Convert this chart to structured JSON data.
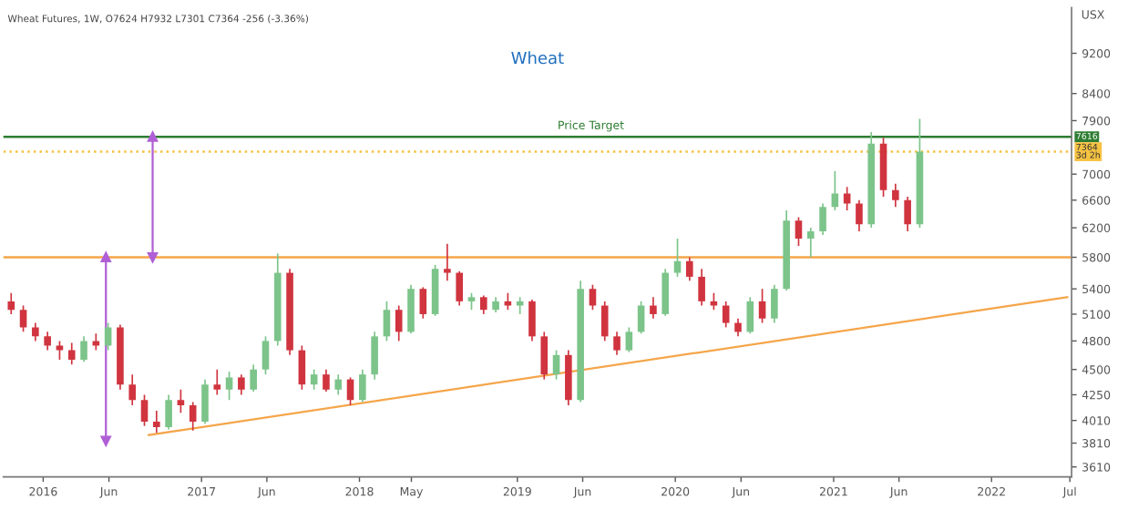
{
  "chart_data": {
    "type": "candlestick",
    "title": "Wheat",
    "subtitle": "Wheat Futures, 1W, O7624 H7932 L7301 C7364 -256 (-3.36%)",
    "ylabel": "USX",
    "x": [
      "2015-10-19",
      "2015-11-16",
      "2015-12-14",
      "2016-01-11",
      "2016-02-08",
      "2016-03-07",
      "2016-04-04",
      "2016-05-02",
      "2016-05-30",
      "2016-06-27",
      "2016-07-25",
      "2016-08-22",
      "2016-09-19",
      "2016-10-17",
      "2016-11-14",
      "2016-12-12",
      "2017-01-09",
      "2017-02-06",
      "2017-03-06",
      "2017-04-03",
      "2017-05-01",
      "2017-05-29",
      "2017-06-26",
      "2017-07-24",
      "2017-08-21",
      "2017-09-18",
      "2017-10-16",
      "2017-11-13",
      "2017-12-11",
      "2018-01-08",
      "2018-02-05",
      "2018-03-05",
      "2018-04-02",
      "2018-04-30",
      "2018-05-28",
      "2018-06-25",
      "2018-07-23",
      "2018-08-20",
      "2018-09-17",
      "2018-10-15",
      "2018-11-12",
      "2018-12-10",
      "2019-01-07",
      "2019-02-04",
      "2019-03-04",
      "2019-04-01",
      "2019-04-29",
      "2019-05-27",
      "2019-06-24",
      "2019-07-22",
      "2019-08-19",
      "2019-09-16",
      "2019-10-14",
      "2019-11-11",
      "2019-12-09",
      "2020-01-06",
      "2020-02-03",
      "2020-03-02",
      "2020-03-30",
      "2020-04-27",
      "2020-05-25",
      "2020-06-22",
      "2020-07-20",
      "2020-08-17",
      "2020-09-14",
      "2020-10-12",
      "2020-11-09",
      "2020-12-07",
      "2021-01-04",
      "2021-02-01",
      "2021-03-01",
      "2021-03-29",
      "2021-04-26",
      "2021-05-24",
      "2021-06-21",
      "2021-07-19"
    ],
    "ohlc": [
      [
        5250,
        5350,
        5100,
        5150
      ],
      [
        5150,
        5200,
        4900,
        4950
      ],
      [
        4950,
        5000,
        4800,
        4850
      ],
      [
        4850,
        4900,
        4700,
        4750
      ],
      [
        4750,
        4800,
        4600,
        4700
      ],
      [
        4700,
        4780,
        4550,
        4600
      ],
      [
        4600,
        4850,
        4580,
        4800
      ],
      [
        4800,
        4880,
        4700,
        4750
      ],
      [
        4750,
        5000,
        4700,
        4950
      ],
      [
        4950,
        4980,
        4300,
        4350
      ],
      [
        4350,
        4450,
        4150,
        4200
      ],
      [
        4200,
        4250,
        3960,
        4000
      ],
      [
        4000,
        4100,
        3900,
        3950
      ],
      [
        3950,
        4250,
        3930,
        4200
      ],
      [
        4200,
        4300,
        4080,
        4150
      ],
      [
        4150,
        4180,
        3920,
        4000
      ],
      [
        4000,
        4400,
        3980,
        4350
      ],
      [
        4350,
        4500,
        4250,
        4300
      ],
      [
        4300,
        4480,
        4200,
        4420
      ],
      [
        4420,
        4450,
        4250,
        4300
      ],
      [
        4300,
        4550,
        4280,
        4500
      ],
      [
        4500,
        4850,
        4450,
        4800
      ],
      [
        4800,
        5850,
        4750,
        5600
      ],
      [
        5600,
        5650,
        4650,
        4700
      ],
      [
        4700,
        4750,
        4300,
        4350
      ],
      [
        4350,
        4500,
        4300,
        4450
      ],
      [
        4450,
        4500,
        4280,
        4300
      ],
      [
        4300,
        4450,
        4250,
        4400
      ],
      [
        4400,
        4420,
        4150,
        4200
      ],
      [
        4200,
        4500,
        4180,
        4450
      ],
      [
        4450,
        4900,
        4400,
        4850
      ],
      [
        4850,
        5250,
        4800,
        5150
      ],
      [
        5150,
        5200,
        4800,
        4900
      ],
      [
        4900,
        5450,
        4880,
        5400
      ],
      [
        5400,
        5420,
        5050,
        5100
      ],
      [
        5100,
        5700,
        5080,
        5650
      ],
      [
        5650,
        5980,
        5500,
        5600
      ],
      [
        5600,
        5620,
        5200,
        5250
      ],
      [
        5250,
        5350,
        5150,
        5300
      ],
      [
        5300,
        5320,
        5100,
        5150
      ],
      [
        5150,
        5300,
        5120,
        5250
      ],
      [
        5250,
        5350,
        5150,
        5200
      ],
      [
        5200,
        5300,
        5100,
        5250
      ],
      [
        5250,
        5270,
        4800,
        4850
      ],
      [
        4850,
        4900,
        4400,
        4450
      ],
      [
        4450,
        4700,
        4400,
        4650
      ],
      [
        4650,
        4700,
        4150,
        4200
      ],
      [
        4200,
        5500,
        4180,
        5400
      ],
      [
        5400,
        5450,
        5150,
        5200
      ],
      [
        5200,
        5250,
        4800,
        4850
      ],
      [
        4850,
        4900,
        4650,
        4700
      ],
      [
        4700,
        4950,
        4680,
        4900
      ],
      [
        4900,
        5250,
        4880,
        5200
      ],
      [
        5200,
        5300,
        5050,
        5100
      ],
      [
        5100,
        5650,
        5080,
        5600
      ],
      [
        5600,
        6050,
        5550,
        5750
      ],
      [
        5750,
        5800,
        5500,
        5550
      ],
      [
        5550,
        5650,
        5200,
        5250
      ],
      [
        5250,
        5350,
        5150,
        5200
      ],
      [
        5200,
        5250,
        4950,
        5000
      ],
      [
        5000,
        5050,
        4850,
        4900
      ],
      [
        4900,
        5300,
        4880,
        5250
      ],
      [
        5250,
        5400,
        5000,
        5050
      ],
      [
        5050,
        5450,
        5000,
        5400
      ],
      [
        5400,
        6450,
        5380,
        6300
      ],
      [
        6300,
        6350,
        5950,
        6050
      ],
      [
        6050,
        6200,
        5800,
        6150
      ],
      [
        6150,
        6550,
        6100,
        6500
      ],
      [
        6500,
        7050,
        6450,
        6700
      ],
      [
        6700,
        6800,
        6450,
        6550
      ],
      [
        6550,
        6600,
        6150,
        6250
      ],
      [
        6250,
        7700,
        6200,
        7500
      ],
      [
        7500,
        7600,
        6650,
        6750
      ],
      [
        6750,
        6850,
        6500,
        6600
      ],
      [
        6600,
        6650,
        6150,
        6250
      ],
      [
        6250,
        7932,
        6200,
        7364
      ]
    ],
    "colors": [
      "#d0343f",
      "#d0343f",
      "#d0343f",
      "#d0343f",
      "#d0343f",
      "#d0343f",
      "#7cc48a",
      "#d0343f",
      "#7cc48a",
      "#d0343f",
      "#d0343f",
      "#d0343f",
      "#d0343f",
      "#7cc48a",
      "#d0343f",
      "#d0343f",
      "#7cc48a",
      "#d0343f",
      "#7cc48a",
      "#d0343f",
      "#7cc48a",
      "#7cc48a",
      "#7cc48a",
      "#d0343f",
      "#d0343f",
      "#7cc48a",
      "#d0343f",
      "#7cc48a",
      "#d0343f",
      "#7cc48a",
      "#7cc48a",
      "#7cc48a",
      "#d0343f",
      "#7cc48a",
      "#d0343f",
      "#7cc48a",
      "#d0343f",
      "#d0343f",
      "#7cc48a",
      "#d0343f",
      "#7cc48a",
      "#d0343f",
      "#7cc48a",
      "#d0343f",
      "#d0343f",
      "#7cc48a",
      "#d0343f",
      "#7cc48a",
      "#d0343f",
      "#d0343f",
      "#d0343f",
      "#7cc48a",
      "#7cc48a",
      "#d0343f",
      "#7cc48a",
      "#7cc48a",
      "#d0343f",
      "#d0343f",
      "#d0343f",
      "#d0343f",
      "#d0343f",
      "#7cc48a",
      "#d0343f",
      "#7cc48a",
      "#7cc48a",
      "#d0343f",
      "#7cc48a",
      "#7cc48a",
      "#7cc48a",
      "#d0343f",
      "#d0343f",
      "#7cc48a",
      "#d0343f",
      "#d0343f",
      "#d0343f",
      "#7cc48a"
    ],
    "series": [
      {
        "type": "line",
        "color": "#f5a54a",
        "x": [
          "2016-09-01",
          "2022-06-25"
        ],
        "values": [
          3880,
          5300
        ]
      },
      {
        "type": "line",
        "color": "#b05fd6",
        "marker": "triangle",
        "x": [
          "2016-05-25",
          "2016-05-25"
        ],
        "values": [
          3830,
          5800
        ]
      },
      {
        "type": "line",
        "color": "#b05fd6",
        "marker": "triangle",
        "x": [
          "2016-09-10",
          "2016-09-10"
        ],
        "values": [
          5800,
          7616
        ]
      }
    ],
    "ref_lines": [
      {
        "axis": "y",
        "value": 7616,
        "label": "Price Target",
        "color": "#2e7d32"
      },
      {
        "axis": "y",
        "value": 7364,
        "color": "#f5c242",
        "line_style": "dotted"
      },
      {
        "axis": "y",
        "value": 5800,
        "color": "#f5a54a"
      }
    ],
    "annotations": [
      "7616",
      "7364\n3d 2h"
    ],
    "log": "y",
    "xlim": [
      "2015-10-01",
      "2022-07-05"
    ],
    "ylim": [
      3530,
      10200
    ],
    "xticks": [
      {
        "value": "2016-01-01",
        "label": "2016"
      },
      {
        "value": "2016-06-01",
        "label": "Jun"
      },
      {
        "value": "2017-01-01",
        "label": "2017"
      },
      {
        "value": "2017-06-01",
        "label": "Jun"
      },
      {
        "value": "2018-01-01",
        "label": "2018"
      },
      {
        "value": "2018-05-01",
        "label": "May"
      },
      {
        "value": "2019-01-01",
        "label": "2019"
      },
      {
        "value": "2019-06-01",
        "label": "Jun"
      },
      {
        "value": "2020-01-01",
        "label": "2020"
      },
      {
        "value": "2020-06-01",
        "label": "Jun"
      },
      {
        "value": "2021-01-01",
        "label": "2021"
      },
      {
        "value": "2021-06-01",
        "label": "Jun"
      },
      {
        "value": "2022-01-01",
        "label": "2022"
      },
      {
        "value": "2022-07-01",
        "label": "Jul"
      }
    ],
    "yticks": [
      3610,
      3810,
      4010,
      4250,
      4500,
      4800,
      5100,
      5400,
      5800,
      6200,
      6600,
      7000,
      7900,
      8400,
      9200
    ],
    "grid": false
  }
}
